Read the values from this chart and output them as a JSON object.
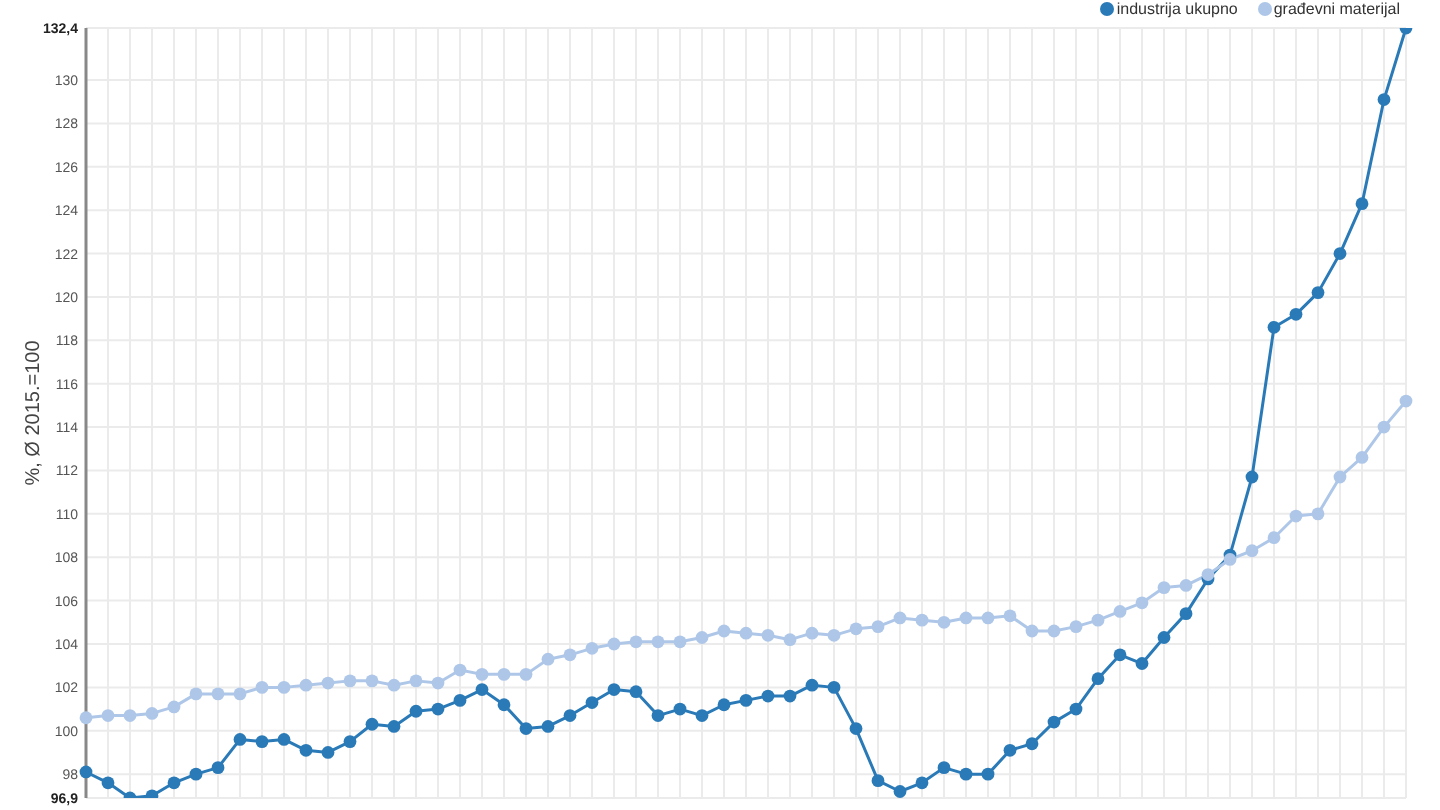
{
  "chart_data": {
    "type": "line",
    "ylabel": "%, Ø 2015.=100",
    "categories": [
      null,
      null,
      null,
      null,
      null,
      null,
      null,
      null,
      null,
      null,
      null,
      null,
      null,
      null,
      null,
      null,
      null,
      null,
      null,
      null,
      null,
      null,
      null,
      null,
      null,
      null,
      null,
      null,
      null,
      null,
      null,
      null,
      null,
      null,
      null,
      null,
      null,
      null,
      null,
      null,
      null,
      null,
      null,
      null,
      null,
      null,
      null,
      null,
      null,
      null,
      null,
      null,
      null,
      null,
      null,
      null,
      null,
      null,
      null,
      null,
      null
    ],
    "series": [
      {
        "name": "industrija ukupno",
        "color": "#2a7ab8",
        "values": [
          98.1,
          97.6,
          96.9,
          97.0,
          97.6,
          98.0,
          98.3,
          99.6,
          99.5,
          99.6,
          99.1,
          99.0,
          99.5,
          100.3,
          100.2,
          100.9,
          101.0,
          101.4,
          101.9,
          101.2,
          100.1,
          100.2,
          100.7,
          101.3,
          101.9,
          101.8,
          100.7,
          101.0,
          100.7,
          101.2,
          101.4,
          101.6,
          101.6,
          102.1,
          102.0,
          100.1,
          97.7,
          97.2,
          97.6,
          98.3,
          98.0,
          98.0,
          99.1,
          99.4,
          100.4,
          101.0,
          102.4,
          103.5,
          103.1,
          104.3,
          105.4,
          107.0,
          108.1,
          111.7,
          118.6,
          119.2,
          120.2,
          122.0,
          124.3,
          129.1,
          132.4
        ]
      },
      {
        "name": "građevni materijal",
        "color": "#aec7e8",
        "values": [
          100.6,
          100.7,
          100.7,
          100.8,
          101.1,
          101.7,
          101.7,
          101.7,
          102.0,
          102.0,
          102.1,
          102.2,
          102.3,
          102.3,
          102.1,
          102.3,
          102.2,
          102.8,
          102.6,
          102.6,
          102.6,
          103.3,
          103.5,
          103.8,
          104.0,
          104.1,
          104.1,
          104.1,
          104.3,
          104.6,
          104.5,
          104.4,
          104.2,
          104.5,
          104.4,
          104.7,
          104.8,
          105.2,
          105.1,
          105.0,
          105.2,
          105.2,
          105.3,
          104.6,
          104.6,
          104.8,
          105.1,
          105.5,
          105.9,
          106.6,
          106.7,
          107.2,
          107.9,
          108.3,
          108.9,
          109.9,
          110.0,
          111.7,
          112.6,
          114.0,
          115.2
        ]
      }
    ],
    "ylim": [
      96.9,
      132.4
    ],
    "yticks": [
      {
        "value": 96.9,
        "label": "96,9"
      },
      98,
      100,
      102,
      104,
      106,
      108,
      110,
      112,
      114,
      116,
      118,
      120,
      122,
      124,
      126,
      128,
      130,
      {
        "value": 132.4,
        "label": "132,4"
      }
    ],
    "grid": true,
    "legend": "top right",
    "marker": "circle",
    "line_style": "solid",
    "tick_labels": "y"
  }
}
